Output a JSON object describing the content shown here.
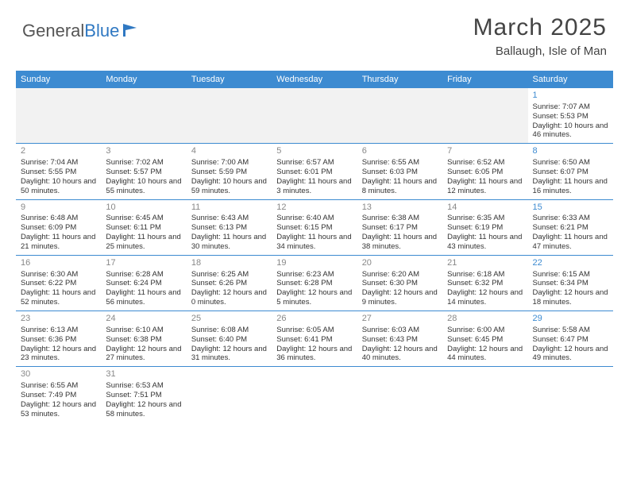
{
  "logo": {
    "text1": "General",
    "text2": "Blue",
    "flag_color": "#2f78c2"
  },
  "title": "March 2025",
  "location": "Ballaugh, Isle of Man",
  "colors": {
    "header_bg": "#3d8bd1",
    "header_text": "#ffffff",
    "border": "#3d8bd1",
    "blank_bg": "#f2f2f2",
    "daynum": "#888888",
    "daynum_sat": "#3d8bd1",
    "text": "#333333"
  },
  "font": {
    "family": "Arial",
    "cell_size_pt": 7,
    "header_size_pt": 8,
    "title_size_pt": 22
  },
  "week_header": [
    "Sunday",
    "Monday",
    "Tuesday",
    "Wednesday",
    "Thursday",
    "Friday",
    "Saturday"
  ],
  "weeks": [
    [
      null,
      null,
      null,
      null,
      null,
      null,
      {
        "n": "1",
        "sunrise": "Sunrise: 7:07 AM",
        "sunset": "Sunset: 5:53 PM",
        "daylight": "Daylight: 10 hours and 46 minutes."
      }
    ],
    [
      {
        "n": "2",
        "sunrise": "Sunrise: 7:04 AM",
        "sunset": "Sunset: 5:55 PM",
        "daylight": "Daylight: 10 hours and 50 minutes."
      },
      {
        "n": "3",
        "sunrise": "Sunrise: 7:02 AM",
        "sunset": "Sunset: 5:57 PM",
        "daylight": "Daylight: 10 hours and 55 minutes."
      },
      {
        "n": "4",
        "sunrise": "Sunrise: 7:00 AM",
        "sunset": "Sunset: 5:59 PM",
        "daylight": "Daylight: 10 hours and 59 minutes."
      },
      {
        "n": "5",
        "sunrise": "Sunrise: 6:57 AM",
        "sunset": "Sunset: 6:01 PM",
        "daylight": "Daylight: 11 hours and 3 minutes."
      },
      {
        "n": "6",
        "sunrise": "Sunrise: 6:55 AM",
        "sunset": "Sunset: 6:03 PM",
        "daylight": "Daylight: 11 hours and 8 minutes."
      },
      {
        "n": "7",
        "sunrise": "Sunrise: 6:52 AM",
        "sunset": "Sunset: 6:05 PM",
        "daylight": "Daylight: 11 hours and 12 minutes."
      },
      {
        "n": "8",
        "sunrise": "Sunrise: 6:50 AM",
        "sunset": "Sunset: 6:07 PM",
        "daylight": "Daylight: 11 hours and 16 minutes."
      }
    ],
    [
      {
        "n": "9",
        "sunrise": "Sunrise: 6:48 AM",
        "sunset": "Sunset: 6:09 PM",
        "daylight": "Daylight: 11 hours and 21 minutes."
      },
      {
        "n": "10",
        "sunrise": "Sunrise: 6:45 AM",
        "sunset": "Sunset: 6:11 PM",
        "daylight": "Daylight: 11 hours and 25 minutes."
      },
      {
        "n": "11",
        "sunrise": "Sunrise: 6:43 AM",
        "sunset": "Sunset: 6:13 PM",
        "daylight": "Daylight: 11 hours and 30 minutes."
      },
      {
        "n": "12",
        "sunrise": "Sunrise: 6:40 AM",
        "sunset": "Sunset: 6:15 PM",
        "daylight": "Daylight: 11 hours and 34 minutes."
      },
      {
        "n": "13",
        "sunrise": "Sunrise: 6:38 AM",
        "sunset": "Sunset: 6:17 PM",
        "daylight": "Daylight: 11 hours and 38 minutes."
      },
      {
        "n": "14",
        "sunrise": "Sunrise: 6:35 AM",
        "sunset": "Sunset: 6:19 PM",
        "daylight": "Daylight: 11 hours and 43 minutes."
      },
      {
        "n": "15",
        "sunrise": "Sunrise: 6:33 AM",
        "sunset": "Sunset: 6:21 PM",
        "daylight": "Daylight: 11 hours and 47 minutes."
      }
    ],
    [
      {
        "n": "16",
        "sunrise": "Sunrise: 6:30 AM",
        "sunset": "Sunset: 6:22 PM",
        "daylight": "Daylight: 11 hours and 52 minutes."
      },
      {
        "n": "17",
        "sunrise": "Sunrise: 6:28 AM",
        "sunset": "Sunset: 6:24 PM",
        "daylight": "Daylight: 11 hours and 56 minutes."
      },
      {
        "n": "18",
        "sunrise": "Sunrise: 6:25 AM",
        "sunset": "Sunset: 6:26 PM",
        "daylight": "Daylight: 12 hours and 0 minutes."
      },
      {
        "n": "19",
        "sunrise": "Sunrise: 6:23 AM",
        "sunset": "Sunset: 6:28 PM",
        "daylight": "Daylight: 12 hours and 5 minutes."
      },
      {
        "n": "20",
        "sunrise": "Sunrise: 6:20 AM",
        "sunset": "Sunset: 6:30 PM",
        "daylight": "Daylight: 12 hours and 9 minutes."
      },
      {
        "n": "21",
        "sunrise": "Sunrise: 6:18 AM",
        "sunset": "Sunset: 6:32 PM",
        "daylight": "Daylight: 12 hours and 14 minutes."
      },
      {
        "n": "22",
        "sunrise": "Sunrise: 6:15 AM",
        "sunset": "Sunset: 6:34 PM",
        "daylight": "Daylight: 12 hours and 18 minutes."
      }
    ],
    [
      {
        "n": "23",
        "sunrise": "Sunrise: 6:13 AM",
        "sunset": "Sunset: 6:36 PM",
        "daylight": "Daylight: 12 hours and 23 minutes."
      },
      {
        "n": "24",
        "sunrise": "Sunrise: 6:10 AM",
        "sunset": "Sunset: 6:38 PM",
        "daylight": "Daylight: 12 hours and 27 minutes."
      },
      {
        "n": "25",
        "sunrise": "Sunrise: 6:08 AM",
        "sunset": "Sunset: 6:40 PM",
        "daylight": "Daylight: 12 hours and 31 minutes."
      },
      {
        "n": "26",
        "sunrise": "Sunrise: 6:05 AM",
        "sunset": "Sunset: 6:41 PM",
        "daylight": "Daylight: 12 hours and 36 minutes."
      },
      {
        "n": "27",
        "sunrise": "Sunrise: 6:03 AM",
        "sunset": "Sunset: 6:43 PM",
        "daylight": "Daylight: 12 hours and 40 minutes."
      },
      {
        "n": "28",
        "sunrise": "Sunrise: 6:00 AM",
        "sunset": "Sunset: 6:45 PM",
        "daylight": "Daylight: 12 hours and 44 minutes."
      },
      {
        "n": "29",
        "sunrise": "Sunrise: 5:58 AM",
        "sunset": "Sunset: 6:47 PM",
        "daylight": "Daylight: 12 hours and 49 minutes."
      }
    ],
    [
      {
        "n": "30",
        "sunrise": "Sunrise: 6:55 AM",
        "sunset": "Sunset: 7:49 PM",
        "daylight": "Daylight: 12 hours and 53 minutes."
      },
      {
        "n": "31",
        "sunrise": "Sunrise: 6:53 AM",
        "sunset": "Sunset: 7:51 PM",
        "daylight": "Daylight: 12 hours and 58 minutes."
      },
      null,
      null,
      null,
      null,
      null
    ]
  ]
}
